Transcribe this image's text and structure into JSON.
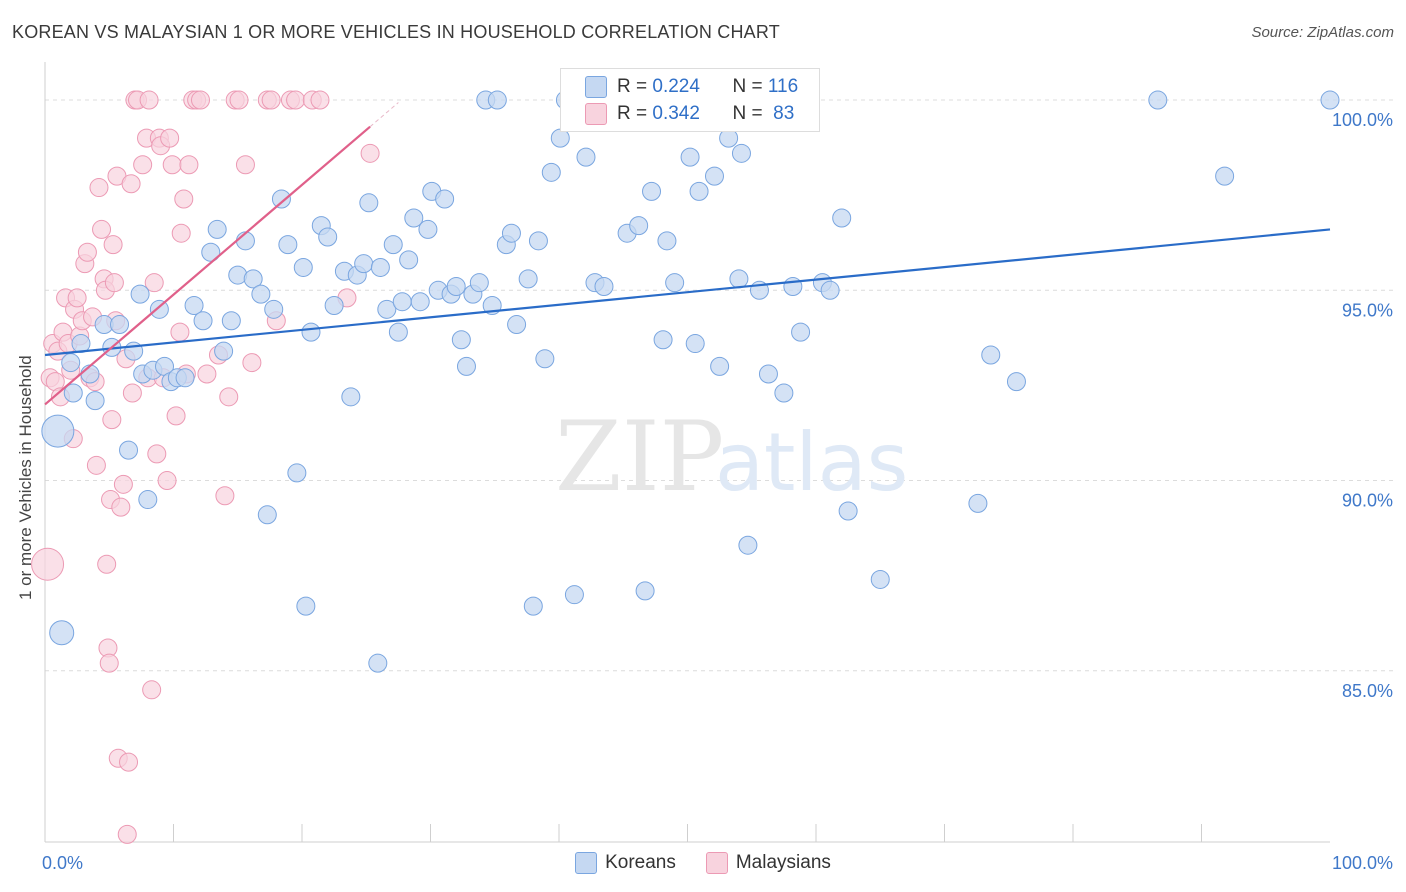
{
  "header": {
    "title": "KOREAN VS MALAYSIAN 1 OR MORE VEHICLES IN HOUSEHOLD CORRELATION CHART",
    "source": "Source: ZipAtlas.com"
  },
  "stats_legend": {
    "rows": [
      {
        "r_label": "R = ",
        "r_value": "0.224",
        "n_label": "N = ",
        "n_value": "116"
      },
      {
        "r_label": "R = ",
        "r_value": "0.342",
        "n_label": "N = ",
        "n_value": " 83"
      }
    ]
  },
  "watermark": {
    "zip": "ZIP",
    "atlas": "atlas"
  },
  "chart_data": {
    "type": "scatter",
    "title": "KOREAN VS MALAYSIAN 1 OR MORE VEHICLES IN HOUSEHOLD CORRELATION CHART",
    "xlabel": "",
    "ylabel": "1 or more Vehicles in Household",
    "xlim": [
      0,
      100
    ],
    "ylim": [
      80.5,
      101.0
    ],
    "x_tick_labels": [
      "0.0%",
      "100.0%"
    ],
    "y_ticks": [
      85.0,
      90.0,
      95.0,
      100.0
    ],
    "y_tick_labels": [
      "85.0%",
      "90.0%",
      "95.0%",
      "100.0%"
    ],
    "legend": [
      "Koreans",
      "Malaysians"
    ],
    "colors": {
      "koreans": "#7aa6e0",
      "koreans_fill": "#c5d8f2",
      "koreans_line": "#2a6cc8",
      "malaysians": "#ec9ab4",
      "malaysians_fill": "#f8d3de",
      "malaysians_line": "#e0608a"
    },
    "series": [
      {
        "name": "Koreans",
        "r": 0.224,
        "n": 116,
        "trend": {
          "x": [
            0,
            100
          ],
          "y": [
            93.3,
            96.6
          ]
        },
        "points": [
          [
            1.0,
            91.3,
            3
          ],
          [
            1.3,
            86.0,
            2
          ],
          [
            2.0,
            93.1,
            1
          ],
          [
            2.2,
            92.3,
            1
          ],
          [
            2.8,
            93.6,
            1
          ],
          [
            3.5,
            92.8,
            1
          ],
          [
            3.9,
            92.1,
            1
          ],
          [
            4.6,
            94.1,
            1
          ],
          [
            5.2,
            93.5,
            1
          ],
          [
            5.8,
            94.1,
            1
          ],
          [
            6.5,
            90.8,
            1
          ],
          [
            6.9,
            93.4,
            1
          ],
          [
            7.4,
            94.9,
            1
          ],
          [
            7.6,
            92.8,
            1
          ],
          [
            8.0,
            89.5,
            1
          ],
          [
            8.4,
            92.9,
            1
          ],
          [
            8.9,
            94.5,
            1
          ],
          [
            9.3,
            93.0,
            1
          ],
          [
            9.8,
            92.6,
            1
          ],
          [
            10.3,
            92.7,
            1
          ],
          [
            10.9,
            92.7,
            1
          ],
          [
            11.6,
            94.6,
            1
          ],
          [
            12.3,
            94.2,
            1
          ],
          [
            12.9,
            96.0,
            1
          ],
          [
            13.4,
            96.6,
            1
          ],
          [
            13.9,
            93.4,
            1
          ],
          [
            14.5,
            94.2,
            1
          ],
          [
            15.0,
            95.4,
            1
          ],
          [
            15.6,
            96.3,
            1
          ],
          [
            16.2,
            95.3,
            1
          ],
          [
            16.8,
            94.9,
            1
          ],
          [
            17.3,
            89.1,
            1
          ],
          [
            17.8,
            94.5,
            1
          ],
          [
            18.4,
            97.4,
            1
          ],
          [
            18.9,
            96.2,
            1
          ],
          [
            19.6,
            90.2,
            1
          ],
          [
            20.1,
            95.6,
            1
          ],
          [
            20.3,
            86.7,
            1
          ],
          [
            20.7,
            93.9,
            1
          ],
          [
            21.5,
            96.7,
            1
          ],
          [
            22.0,
            96.4,
            1
          ],
          [
            22.5,
            94.6,
            1
          ],
          [
            23.3,
            95.5,
            1
          ],
          [
            23.8,
            92.2,
            1
          ],
          [
            24.3,
            95.4,
            1
          ],
          [
            24.8,
            95.7,
            1
          ],
          [
            25.2,
            97.3,
            1
          ],
          [
            25.9,
            85.2,
            1
          ],
          [
            26.1,
            95.6,
            1
          ],
          [
            26.6,
            94.5,
            1
          ],
          [
            27.1,
            96.2,
            1
          ],
          [
            27.5,
            93.9,
            1
          ],
          [
            27.8,
            94.7,
            1
          ],
          [
            28.3,
            95.8,
            1
          ],
          [
            28.7,
            96.9,
            1
          ],
          [
            29.2,
            94.7,
            1
          ],
          [
            29.8,
            96.6,
            1
          ],
          [
            30.1,
            97.6,
            1
          ],
          [
            30.6,
            95.0,
            1
          ],
          [
            31.1,
            97.4,
            1
          ],
          [
            31.6,
            94.9,
            1
          ],
          [
            32.0,
            95.1,
            1
          ],
          [
            32.4,
            93.7,
            1
          ],
          [
            32.8,
            93.0,
            1
          ],
          [
            33.3,
            94.9,
            1
          ],
          [
            33.8,
            95.2,
            1
          ],
          [
            34.3,
            100.0,
            1
          ],
          [
            34.8,
            94.6,
            1
          ],
          [
            35.2,
            100.0,
            1
          ],
          [
            35.9,
            96.2,
            1
          ],
          [
            36.3,
            96.5,
            1
          ],
          [
            36.7,
            94.1,
            1
          ],
          [
            37.6,
            95.3,
            1
          ],
          [
            38.0,
            86.7,
            1
          ],
          [
            38.4,
            96.3,
            1
          ],
          [
            38.9,
            93.2,
            1
          ],
          [
            39.4,
            98.1,
            1
          ],
          [
            40.1,
            99.0,
            1
          ],
          [
            40.5,
            100.0,
            1
          ],
          [
            41.2,
            87.0,
            1
          ],
          [
            42.1,
            98.5,
            1
          ],
          [
            42.8,
            95.2,
            1
          ],
          [
            43.5,
            95.1,
            1
          ],
          [
            45.3,
            96.5,
            1
          ],
          [
            46.2,
            96.7,
            1
          ],
          [
            46.7,
            87.1,
            1
          ],
          [
            47.2,
            97.6,
            1
          ],
          [
            48.1,
            93.7,
            1
          ],
          [
            48.4,
            96.3,
            1
          ],
          [
            49.0,
            95.2,
            1
          ],
          [
            50.2,
            98.5,
            1
          ],
          [
            50.6,
            93.6,
            1
          ],
          [
            50.9,
            97.6,
            1
          ],
          [
            52.1,
            98.0,
            1
          ],
          [
            52.5,
            93.0,
            1
          ],
          [
            53.2,
            99.0,
            1
          ],
          [
            54.0,
            95.3,
            1
          ],
          [
            54.2,
            98.6,
            1
          ],
          [
            54.7,
            88.3,
            1
          ],
          [
            55.6,
            95.0,
            1
          ],
          [
            56.3,
            92.8,
            1
          ],
          [
            57.5,
            92.3,
            1
          ],
          [
            58.2,
            95.1,
            1
          ],
          [
            58.8,
            93.9,
            1
          ],
          [
            60.5,
            95.2,
            1
          ],
          [
            61.1,
            95.0,
            1
          ],
          [
            62.0,
            96.9,
            1
          ],
          [
            62.5,
            89.2,
            1
          ],
          [
            65.0,
            87.4,
            1
          ],
          [
            72.6,
            89.4,
            1
          ],
          [
            73.6,
            93.3,
            1
          ],
          [
            75.6,
            92.6,
            1
          ],
          [
            86.6,
            100.0,
            1
          ],
          [
            91.8,
            98.0,
            1
          ],
          [
            100.0,
            100.0,
            1
          ]
        ]
      },
      {
        "name": "Malaysians",
        "r": 0.342,
        "n": 83,
        "trend": {
          "x": [
            0,
            25.3
          ],
          "y": [
            92.0,
            99.3
          ]
        },
        "points": [
          [
            0.2,
            87.8,
            3
          ],
          [
            0.4,
            92.7,
            1
          ],
          [
            0.6,
            93.6,
            1
          ],
          [
            0.8,
            92.6,
            1
          ],
          [
            1.0,
            93.4,
            1
          ],
          [
            1.2,
            92.2,
            1
          ],
          [
            1.4,
            93.9,
            1
          ],
          [
            1.6,
            94.8,
            1
          ],
          [
            1.8,
            93.6,
            1
          ],
          [
            2.0,
            92.9,
            1
          ],
          [
            2.2,
            91.1,
            1
          ],
          [
            2.3,
            94.5,
            1
          ],
          [
            2.5,
            94.8,
            1
          ],
          [
            2.7,
            93.8,
            1
          ],
          [
            2.9,
            94.2,
            1
          ],
          [
            3.1,
            95.7,
            1
          ],
          [
            3.3,
            96.0,
            1
          ],
          [
            3.5,
            92.7,
            1
          ],
          [
            3.7,
            94.3,
            1
          ],
          [
            3.9,
            92.6,
            1
          ],
          [
            4.0,
            90.4,
            1
          ],
          [
            4.2,
            97.7,
            1
          ],
          [
            4.4,
            96.6,
            1
          ],
          [
            4.6,
            95.3,
            1
          ],
          [
            4.7,
            95.0,
            1
          ],
          [
            4.8,
            87.8,
            1
          ],
          [
            4.9,
            85.6,
            1
          ],
          [
            5.0,
            85.2,
            1
          ],
          [
            5.1,
            89.5,
            1
          ],
          [
            5.2,
            91.6,
            1
          ],
          [
            5.3,
            96.2,
            1
          ],
          [
            5.4,
            95.2,
            1
          ],
          [
            5.5,
            94.2,
            1
          ],
          [
            5.6,
            98.0,
            1
          ],
          [
            5.7,
            82.7,
            1
          ],
          [
            5.9,
            89.3,
            1
          ],
          [
            6.1,
            89.9,
            1
          ],
          [
            6.3,
            93.2,
            1
          ],
          [
            6.4,
            80.7,
            1
          ],
          [
            6.5,
            82.6,
            1
          ],
          [
            6.7,
            97.8,
            1
          ],
          [
            6.8,
            92.3,
            1
          ],
          [
            7.0,
            100.0,
            1
          ],
          [
            7.2,
            100.0,
            1
          ],
          [
            7.6,
            98.3,
            1
          ],
          [
            7.9,
            99.0,
            1
          ],
          [
            8.0,
            92.7,
            1
          ],
          [
            8.1,
            100.0,
            1
          ],
          [
            8.3,
            84.5,
            1
          ],
          [
            8.5,
            95.2,
            1
          ],
          [
            8.7,
            90.7,
            1
          ],
          [
            8.9,
            99.0,
            1
          ],
          [
            9.0,
            98.8,
            1
          ],
          [
            9.2,
            92.7,
            1
          ],
          [
            9.5,
            90.0,
            1
          ],
          [
            9.7,
            99.0,
            1
          ],
          [
            9.9,
            98.3,
            1
          ],
          [
            10.2,
            91.7,
            1
          ],
          [
            10.5,
            93.9,
            1
          ],
          [
            10.6,
            96.5,
            1
          ],
          [
            10.8,
            97.4,
            1
          ],
          [
            11.0,
            92.8,
            1
          ],
          [
            11.2,
            98.3,
            1
          ],
          [
            11.5,
            100.0,
            1
          ],
          [
            11.8,
            100.0,
            1
          ],
          [
            12.1,
            100.0,
            1
          ],
          [
            12.6,
            92.8,
            1
          ],
          [
            13.5,
            93.3,
            1
          ],
          [
            14.0,
            89.6,
            1
          ],
          [
            14.3,
            92.2,
            1
          ],
          [
            14.8,
            100.0,
            1
          ],
          [
            15.1,
            100.0,
            1
          ],
          [
            15.6,
            98.3,
            1
          ],
          [
            16.1,
            93.1,
            1
          ],
          [
            17.3,
            100.0,
            1
          ],
          [
            17.6,
            100.0,
            1
          ],
          [
            18.0,
            94.2,
            1
          ],
          [
            19.1,
            100.0,
            1
          ],
          [
            19.5,
            100.0,
            1
          ],
          [
            20.8,
            100.0,
            1
          ],
          [
            21.4,
            100.0,
            1
          ],
          [
            23.5,
            94.8,
            1
          ],
          [
            25.3,
            98.6,
            1
          ]
        ]
      }
    ]
  }
}
